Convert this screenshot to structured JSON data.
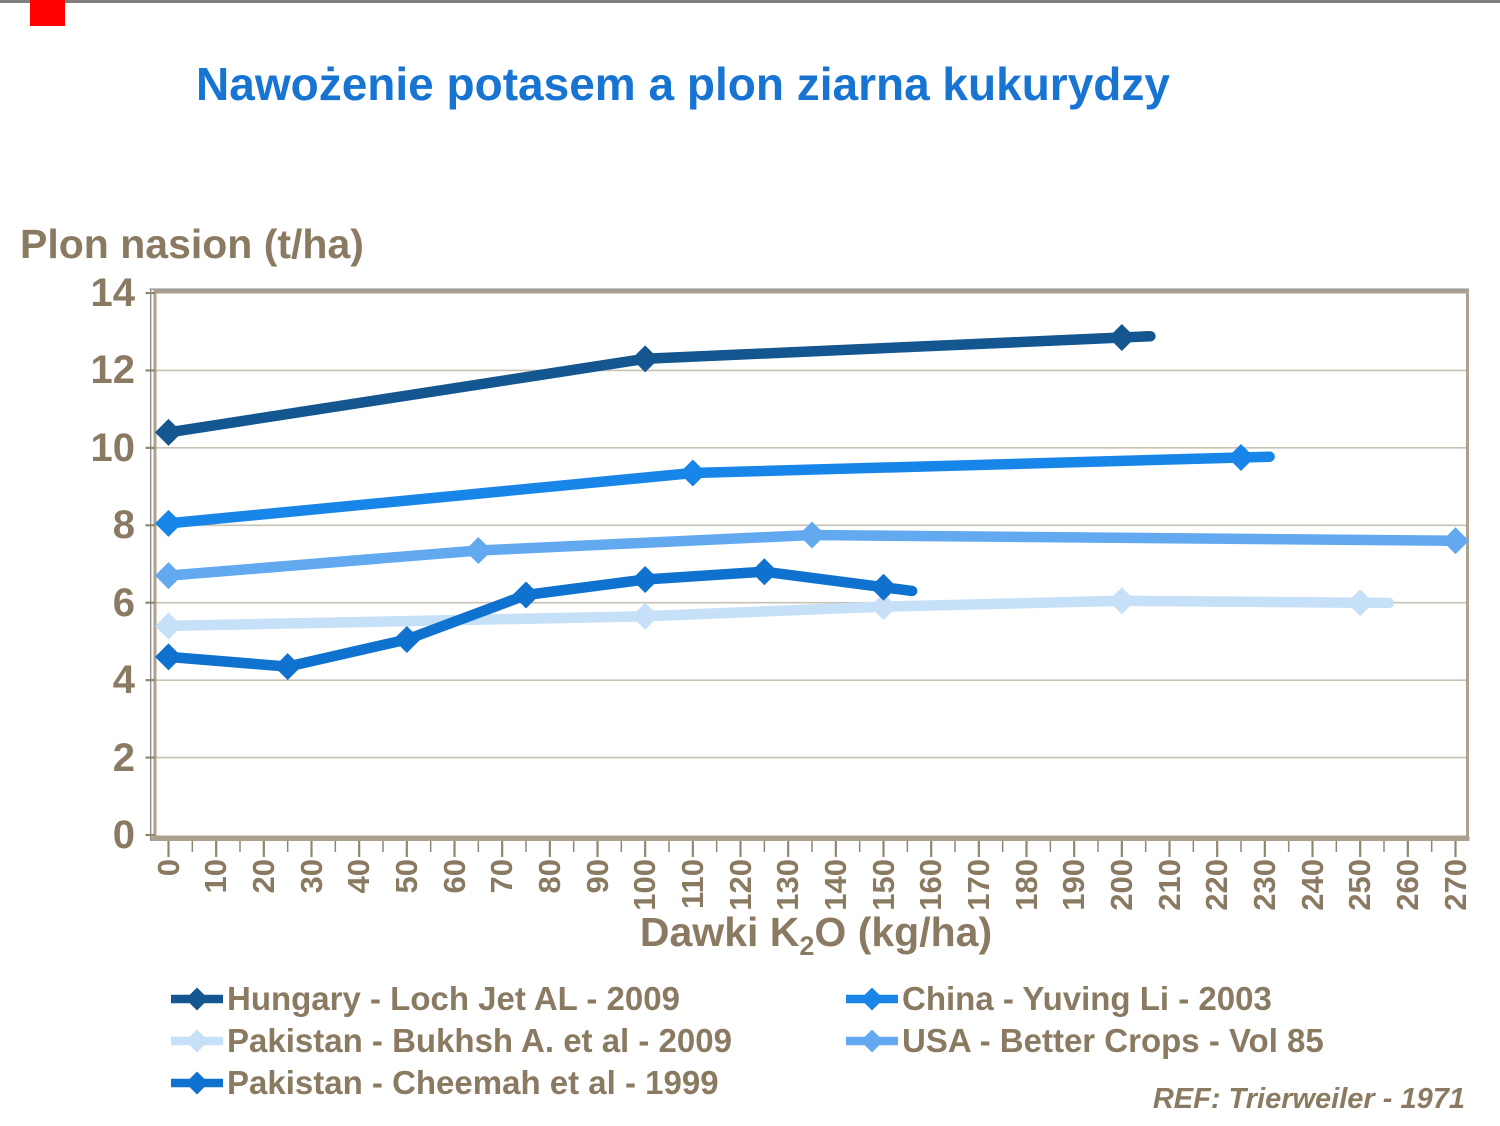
{
  "page": {
    "background": "#FFFFFF",
    "top_strip_color": "#7F7F7F",
    "corner_marker_color": "#FF0000",
    "text_brown": "#8B7A62",
    "title_color": "#1874D2",
    "frame_color": "#ACA08F",
    "gridline_color": "#C9C1B4"
  },
  "title": {
    "text": "Nawożenie potasem a plon ziarna kukurydzy"
  },
  "x_axis_title": {
    "prefix": "Dawki K",
    "subscript": "2",
    "suffix": "O (kg/ha)"
  },
  "chart_data": {
    "type": "line",
    "title": "Nawożenie potasem a plon ziarna kukurydzy",
    "xlabel": "Dawki K2O (kg/ha)",
    "ylabel": "Plon nasion (t/ha)",
    "xlim": [
      0,
      270
    ],
    "ylim": [
      0,
      14
    ],
    "x_tick_step": 10,
    "y_tick_step": 2,
    "x_tick_labels": [
      "0",
      "10",
      "20",
      "30",
      "40",
      "50",
      "60",
      "70",
      "80",
      "90",
      "100",
      "110",
      "120",
      "130",
      "140",
      "150",
      "160",
      "170",
      "180",
      "190",
      "200",
      "210",
      "220",
      "230",
      "240",
      "250",
      "260",
      "270"
    ],
    "y_tick_labels": [
      "0",
      "2",
      "4",
      "6",
      "8",
      "10",
      "12",
      "14"
    ],
    "grid": "horizontal",
    "legend_position": "bottom",
    "ref_note": "REF: Trierweiler - 1971",
    "series": [
      {
        "name": "Hungary - Loch Jet AL - 2009",
        "color": "#14568F",
        "points": [
          [
            0,
            10.4
          ],
          [
            100,
            12.3
          ],
          [
            200,
            12.85
          ]
        ],
        "tail_kg": 6
      },
      {
        "name": "China - Yuving Li - 2003",
        "color": "#1885E8",
        "points": [
          [
            0,
            8.05
          ],
          [
            110,
            9.35
          ],
          [
            225,
            9.75
          ]
        ],
        "tail_kg": 6
      },
      {
        "name": "Pakistan - Bukhsh A. et al - 2009",
        "color": "#C6E0F7",
        "points": [
          [
            0,
            5.4
          ],
          [
            100,
            5.65
          ],
          [
            150,
            5.9
          ],
          [
            200,
            6.05
          ],
          [
            250,
            6.0
          ]
        ],
        "tail_kg": 6
      },
      {
        "name": "USA - Better Crops - Vol 85",
        "color": "#62A9F0",
        "points": [
          [
            0,
            6.7
          ],
          [
            65,
            7.35
          ],
          [
            135,
            7.75
          ],
          [
            270,
            7.6
          ]
        ],
        "tail_kg": 0
      },
      {
        "name": "Pakistan - Cheemah et al - 1999",
        "color": "#0F72CE",
        "points": [
          [
            0,
            4.6
          ],
          [
            25,
            4.35
          ],
          [
            50,
            5.05
          ],
          [
            75,
            6.2
          ],
          [
            100,
            6.6
          ],
          [
            125,
            6.8
          ],
          [
            150,
            6.4
          ]
        ],
        "tail_kg": 6
      }
    ]
  }
}
